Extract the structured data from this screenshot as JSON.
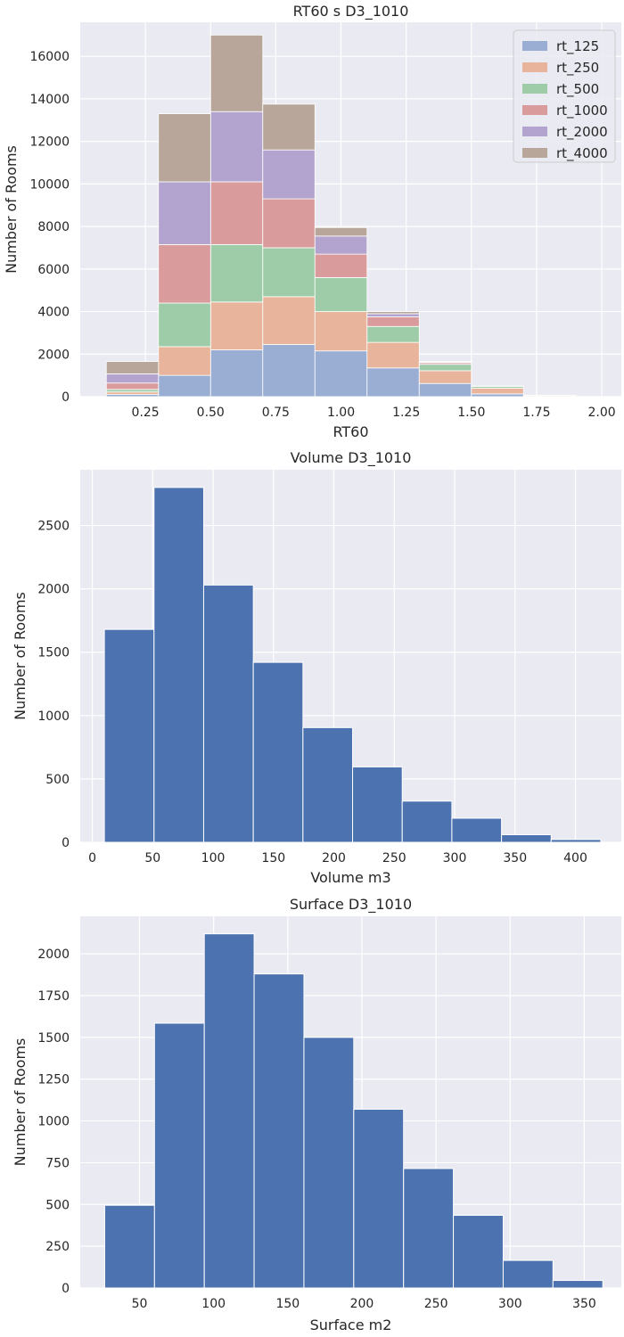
{
  "chart_data": [
    {
      "type": "bar",
      "stacked": true,
      "title": "RT60 s D3_1010",
      "xlabel": "RT60",
      "ylabel": "Number of Rooms",
      "xlim": [
        0.0,
        2.075
      ],
      "ylim": [
        0,
        17600
      ],
      "bin_edges": [
        0.1,
        0.3,
        0.5,
        0.7,
        0.9,
        1.1,
        1.3,
        1.5,
        1.7,
        1.9,
        2.1
      ],
      "x_ticks": [
        0.25,
        0.5,
        0.75,
        1.0,
        1.25,
        1.5,
        1.75,
        2.0
      ],
      "x_tick_labels": [
        "0.25",
        "0.50",
        "0.75",
        "1.00",
        "1.25",
        "1.50",
        "1.75",
        "2.00"
      ],
      "y_ticks": [
        0,
        2000,
        4000,
        6000,
        8000,
        10000,
        12000,
        14000,
        16000
      ],
      "y_tick_labels": [
        "0",
        "2000",
        "4000",
        "6000",
        "8000",
        "10000",
        "12000",
        "14000",
        "16000"
      ],
      "grid": true,
      "legend": "top-right",
      "series": [
        {
          "name": "rt_125",
          "color": "#9aaed4",
          "values": [
            100,
            1000,
            2200,
            2450,
            2150,
            1350,
            620,
            130,
            10,
            0
          ]
        },
        {
          "name": "rt_250",
          "color": "#e8b49b",
          "values": [
            120,
            1350,
            2250,
            2250,
            1850,
            1200,
            600,
            270,
            40,
            0
          ]
        },
        {
          "name": "rt_500",
          "color": "#9fcca8",
          "values": [
            120,
            2050,
            2700,
            2300,
            1600,
            750,
            300,
            80,
            10,
            0
          ]
        },
        {
          "name": "rt_1000",
          "color": "#d99b9c",
          "values": [
            300,
            2750,
            2950,
            2300,
            1100,
            450,
            80,
            10,
            0,
            0
          ]
        },
        {
          "name": "rt_2000",
          "color": "#b3a4cf",
          "values": [
            430,
            2950,
            3300,
            2300,
            850,
            150,
            30,
            0,
            0,
            0
          ]
        },
        {
          "name": "rt_4000",
          "color": "#b7a699",
          "values": [
            580,
            3200,
            3600,
            2150,
            400,
            100,
            20,
            10,
            0,
            0
          ]
        }
      ]
    },
    {
      "type": "bar",
      "title": "Volume D3_1010",
      "xlabel": "Volume m3",
      "ylabel": "Number of Rooms",
      "xlim": [
        -10,
        438
      ],
      "ylim": [
        0,
        2940
      ],
      "bin_edges": [
        10,
        51.1,
        92.2,
        133.3,
        174.4,
        215.5,
        256.6,
        297.7,
        338.8,
        379.9,
        421
      ],
      "values": [
        1680,
        2800,
        2030,
        1420,
        905,
        595,
        325,
        190,
        60,
        22
      ],
      "color": "#4c72b0",
      "x_ticks": [
        0,
        50,
        100,
        150,
        200,
        250,
        300,
        350,
        400
      ],
      "x_tick_labels": [
        "0",
        "50",
        "100",
        "150",
        "200",
        "250",
        "300",
        "350",
        "400"
      ],
      "y_ticks": [
        0,
        500,
        1000,
        1500,
        2000,
        2500
      ],
      "y_tick_labels": [
        "0",
        "500",
        "1000",
        "1500",
        "2000",
        "2500"
      ],
      "grid": true
    },
    {
      "type": "bar",
      "title": "Surface D3_1010",
      "xlabel": "Surface m2",
      "ylabel": "Number of Rooms",
      "xlim": [
        10,
        375
      ],
      "ylim": [
        0,
        2225
      ],
      "bin_edges": [
        26.5,
        60.1,
        93.7,
        127.3,
        160.9,
        194.5,
        228.1,
        261.7,
        295.3,
        328.9,
        362.5
      ],
      "values": [
        495,
        1585,
        2120,
        1880,
        1500,
        1070,
        715,
        435,
        165,
        45
      ],
      "color": "#4c72b0",
      "x_ticks": [
        50,
        100,
        150,
        200,
        250,
        300,
        350
      ],
      "x_tick_labels": [
        "50",
        "100",
        "150",
        "200",
        "250",
        "300",
        "350"
      ],
      "y_ticks": [
        0,
        250,
        500,
        750,
        1000,
        1250,
        1500,
        1750,
        2000
      ],
      "y_tick_labels": [
        "0",
        "250",
        "500",
        "750",
        "1000",
        "1250",
        "1500",
        "1750",
        "2000"
      ],
      "grid": true
    }
  ]
}
